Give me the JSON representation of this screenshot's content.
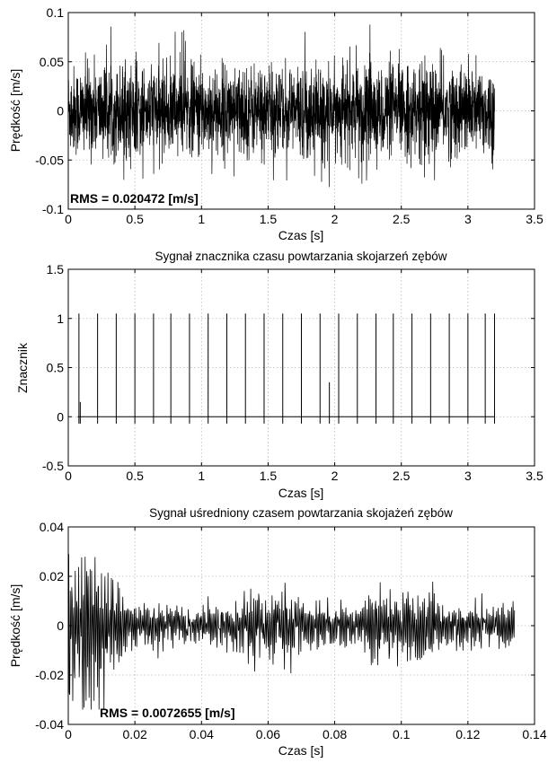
{
  "chart_data": [
    {
      "type": "line",
      "title": "",
      "xlabel": "Czas [s]",
      "ylabel": "Prędkość [m/s]",
      "xlim": [
        0,
        3.5
      ],
      "ylim": [
        -0.1,
        0.1
      ],
      "xticks": [
        "0",
        "0.5",
        "1",
        "1.5",
        "2",
        "2.5",
        "3",
        "3.5"
      ],
      "yticks": [
        "-0.1",
        "-0.05",
        "0",
        "0.05",
        "0.1"
      ],
      "grid": true,
      "annotation": "RMS = 0.020472 [m/s]",
      "signal": {
        "x_end": 3.2,
        "rms": 0.020472,
        "peak_max": 0.088,
        "peak_min": -0.078
      }
    },
    {
      "type": "line",
      "title": "Sygnał znacznika czasu powtarzania skojarzeń zębów",
      "xlabel": "Czas [s]",
      "ylabel": "Znacznik",
      "xlim": [
        0,
        3.5
      ],
      "ylim": [
        -0.5,
        1.5
      ],
      "xticks": [
        "0",
        "0.5",
        "1",
        "1.5",
        "2",
        "2.5",
        "3",
        "3.5"
      ],
      "yticks": [
        "-0.5",
        "0",
        "0.5",
        "1",
        "1.5"
      ],
      "grid": true,
      "spikes_x": [
        0.08,
        0.22,
        0.36,
        0.5,
        0.64,
        0.77,
        0.91,
        1.05,
        1.19,
        1.33,
        1.47,
        1.61,
        1.75,
        1.89,
        2.03,
        2.17,
        2.31,
        2.44,
        2.58,
        2.72,
        2.86,
        3.0,
        3.13,
        3.2
      ],
      "spike_height": 1.05,
      "baseline": 0,
      "x_end": 3.2
    },
    {
      "type": "line",
      "title": "Sygnał uśredniony czasem powtarzania skojażeń zębów",
      "xlabel": "Czas [s]",
      "ylabel": "Prędkość [m/s]",
      "xlim": [
        0,
        0.14
      ],
      "ylim": [
        -0.04,
        0.04
      ],
      "xticks": [
        "0",
        "0.02",
        "0.04",
        "0.06",
        "0.08",
        "0.1",
        "0.12",
        "0.14"
      ],
      "yticks": [
        "-0.04",
        "-0.02",
        "0",
        "0.02",
        "0.04"
      ],
      "grid": true,
      "annotation": "RMS = 0.0072655 [m/s]",
      "signal": {
        "x_end": 0.134,
        "rms": 0.0072655,
        "peak_max": 0.029,
        "peak_min": -0.034
      }
    }
  ]
}
